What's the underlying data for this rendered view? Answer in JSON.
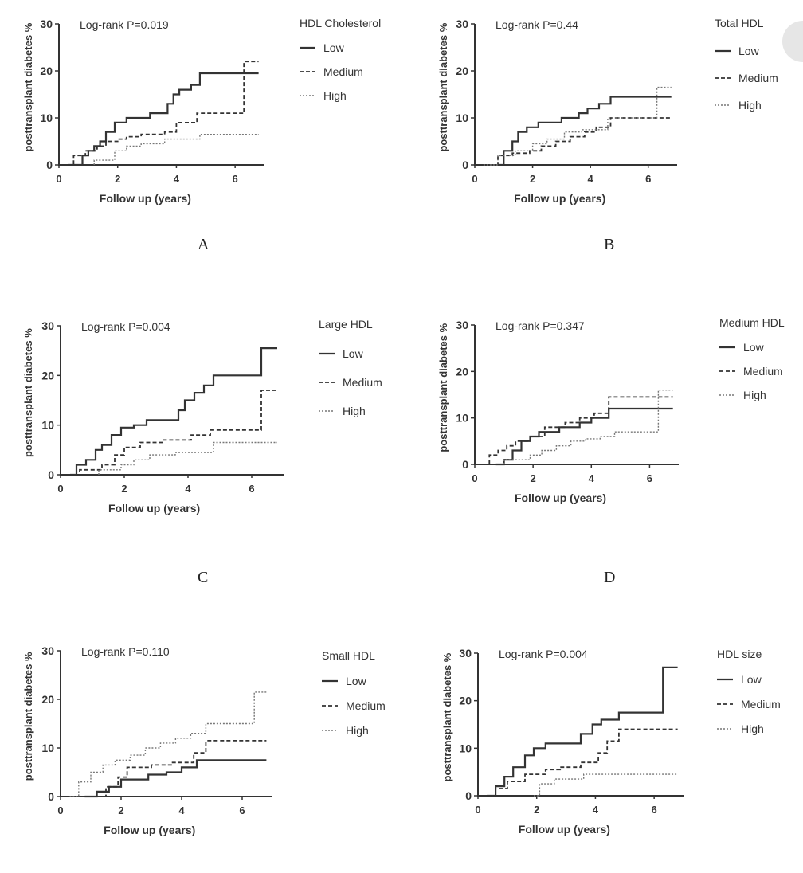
{
  "chart_data": [
    {
      "type": "line",
      "panel_letter": "A",
      "annotation": "Log-rank P=0.019",
      "legend_title": "HDL Cholesterol",
      "xlabel": "Follow up (years)",
      "ylabel": "posttransplant diabetes %",
      "xlim": [
        0,
        7
      ],
      "ylim": [
        0,
        30
      ],
      "x_ticks": [
        "0",
        "2",
        "4",
        "6"
      ],
      "y_ticks": [
        "0",
        "10",
        "20",
        "30"
      ],
      "legend_position": "right",
      "series": [
        {
          "name": "Low",
          "style": "solid",
          "x": [
            0.3,
            0.8,
            1.0,
            1.2,
            1.4,
            1.6,
            1.9,
            2.3,
            3.1,
            3.7,
            3.9,
            4.1,
            4.5,
            4.8,
            6.8
          ],
          "y": [
            0,
            2,
            3,
            4,
            5,
            7,
            9,
            10,
            11,
            13,
            15,
            16,
            17,
            19.5,
            19.5
          ]
        },
        {
          "name": "Medium",
          "style": "dashed",
          "x": [
            0.3,
            0.5,
            0.9,
            1.3,
            1.6,
            2.0,
            2.3,
            2.8,
            3.6,
            4.0,
            4.7,
            6.3,
            6.8
          ],
          "y": [
            0,
            2,
            3,
            4,
            5,
            5.5,
            6,
            6.5,
            7,
            9,
            11,
            22,
            22
          ]
        },
        {
          "name": "High",
          "style": "dotted",
          "x": [
            1.2,
            1.9,
            2.3,
            2.8,
            3.6,
            4.8,
            6.8
          ],
          "y": [
            1,
            3,
            4,
            4.5,
            5.5,
            6.5,
            6.5
          ]
        }
      ]
    },
    {
      "type": "line",
      "panel_letter": "B",
      "annotation": "Log-rank P=0.44",
      "legend_title": "Total HDL",
      "xlabel": "Follow up (years)",
      "ylabel": "posttransplant diabetes %",
      "xlim": [
        0,
        7
      ],
      "ylim": [
        0,
        30
      ],
      "x_ticks": [
        "0",
        "2",
        "4",
        "6"
      ],
      "y_ticks": [
        "0",
        "10",
        "20",
        "30"
      ],
      "legend_position": "right",
      "series": [
        {
          "name": "Low",
          "style": "solid",
          "x": [
            0.8,
            1.0,
            1.3,
            1.5,
            1.8,
            2.2,
            3.0,
            3.6,
            3.9,
            4.3,
            4.7,
            6.8
          ],
          "y": [
            0,
            3,
            5,
            7,
            8,
            9,
            10,
            11,
            12,
            13,
            14.5,
            14.5
          ]
        },
        {
          "name": "Medium",
          "style": "dashed",
          "x": [
            0.3,
            0.8,
            1.3,
            1.9,
            2.3,
            2.8,
            3.3,
            3.8,
            4.2,
            4.7,
            6.8
          ],
          "y": [
            0,
            2,
            2.5,
            3,
            4,
            5,
            6,
            7,
            8,
            10,
            10
          ]
        },
        {
          "name": "High",
          "style": "dotted",
          "x": [
            0.3,
            0.8,
            1.4,
            2.0,
            2.5,
            3.1,
            3.7,
            4.6,
            6.3,
            6.8
          ],
          "y": [
            0,
            2,
            3,
            4.5,
            5.5,
            7,
            7.5,
            10,
            16.5,
            16.5
          ]
        }
      ]
    },
    {
      "type": "line",
      "panel_letter": "C",
      "annotation": "Log-rank P=0.004",
      "legend_title": "Large HDL",
      "xlabel": "Follow up (years)",
      "ylabel": "posttransplant diabetes %",
      "xlim": [
        0,
        7
      ],
      "ylim": [
        0,
        30
      ],
      "x_ticks": [
        "0",
        "2",
        "4",
        "6"
      ],
      "y_ticks": [
        "0",
        "10",
        "20",
        "30"
      ],
      "legend_position": "right",
      "series": [
        {
          "name": "Low",
          "style": "solid",
          "x": [
            0.3,
            0.5,
            0.8,
            1.1,
            1.3,
            1.6,
            1.9,
            2.3,
            2.7,
            3.7,
            3.9,
            4.2,
            4.5,
            4.8,
            6.3,
            6.8
          ],
          "y": [
            0,
            2,
            3,
            5,
            6,
            8,
            9.5,
            10,
            11,
            13,
            15,
            16.5,
            18,
            20,
            25.5,
            25.5
          ]
        },
        {
          "name": "Medium",
          "style": "dashed",
          "x": [
            0.3,
            0.6,
            1.3,
            1.7,
            2.0,
            2.5,
            3.2,
            4.1,
            4.7,
            6.3,
            6.8
          ],
          "y": [
            0,
            1,
            2,
            4,
            5.5,
            6.5,
            7,
            8,
            9,
            17,
            17
          ]
        },
        {
          "name": "High",
          "style": "dotted",
          "x": [
            1.2,
            1.9,
            2.3,
            2.8,
            3.6,
            4.8,
            6.8
          ],
          "y": [
            1,
            2,
            3,
            4,
            4.5,
            6.5,
            6.5
          ]
        }
      ]
    },
    {
      "type": "line",
      "panel_letter": "D",
      "annotation": "Log-rank P=0.347",
      "legend_title": "Medium HDL",
      "xlabel": "Follow up (years)",
      "ylabel": "posttransplant diabetes %",
      "xlim": [
        0,
        7
      ],
      "ylim": [
        0,
        30
      ],
      "x_ticks": [
        "0",
        "2",
        "4",
        "6"
      ],
      "y_ticks": [
        "0",
        "10",
        "20",
        "30"
      ],
      "legend_position": "right",
      "series": [
        {
          "name": "Low",
          "style": "solid",
          "x": [
            0.7,
            1.0,
            1.3,
            1.6,
            1.9,
            2.2,
            2.9,
            3.6,
            4.0,
            4.6,
            6.8
          ],
          "y": [
            0,
            1,
            3,
            5,
            6,
            7,
            8,
            9,
            10,
            12,
            12
          ]
        },
        {
          "name": "Medium",
          "style": "dashed",
          "x": [
            0.3,
            0.5,
            0.8,
            1.1,
            1.4,
            1.9,
            2.4,
            3.1,
            3.6,
            4.1,
            4.6,
            6.8
          ],
          "y": [
            0,
            2,
            3,
            4,
            5,
            6,
            8,
            9,
            10,
            11,
            14.5,
            14.5
          ]
        },
        {
          "name": "High",
          "style": "dotted",
          "x": [
            1.0,
            1.9,
            2.3,
            2.8,
            3.3,
            3.8,
            4.3,
            4.8,
            6.3,
            6.8
          ],
          "y": [
            1,
            2,
            3,
            4,
            5,
            5.5,
            6,
            7,
            16,
            16
          ]
        }
      ]
    },
    {
      "type": "line",
      "panel_letter": "",
      "annotation": "Log-rank P=0.110",
      "legend_title": "Small HDL",
      "xlabel": "Follow up (years)",
      "ylabel": "posttransplant diabetes %",
      "xlim": [
        0,
        7
      ],
      "ylim": [
        0,
        30
      ],
      "x_ticks": [
        "0",
        "2",
        "4",
        "6"
      ],
      "y_ticks": [
        "0",
        "10",
        "20",
        "30"
      ],
      "legend_position": "right",
      "series": [
        {
          "name": "Low",
          "style": "solid",
          "x": [
            0.8,
            1.2,
            1.6,
            2.0,
            2.9,
            3.5,
            4.0,
            4.5,
            6.8
          ],
          "y": [
            0,
            1,
            2,
            3.5,
            4.5,
            5,
            6,
            7.5,
            7.5
          ]
        },
        {
          "name": "Medium",
          "style": "dashed",
          "x": [
            0.8,
            1.5,
            1.9,
            2.2,
            3.0,
            3.7,
            4.4,
            4.8,
            6.8
          ],
          "y": [
            0,
            2,
            4,
            6,
            6.5,
            7,
            9,
            11.5,
            11.5
          ]
        },
        {
          "name": "High",
          "style": "dotted",
          "x": [
            0.3,
            0.6,
            1.0,
            1.4,
            1.8,
            2.3,
            2.8,
            3.3,
            3.8,
            4.3,
            4.8,
            6.2,
            6.4,
            6.8
          ],
          "y": [
            0,
            3,
            5,
            6.5,
            7.5,
            8.5,
            10,
            11,
            12,
            13,
            15,
            15,
            21.5,
            21.5
          ]
        }
      ]
    },
    {
      "type": "line",
      "panel_letter": "",
      "annotation": "Log-rank P=0.004",
      "legend_title": "HDL size",
      "xlabel": "Follow up (years)",
      "ylabel": "posttransplant diabetes %",
      "xlim": [
        0,
        7
      ],
      "ylim": [
        0,
        30
      ],
      "x_ticks": [
        "0",
        "2",
        "4",
        "6"
      ],
      "y_ticks": [
        "0",
        "10",
        "20",
        "30"
      ],
      "legend_position": "right",
      "series": [
        {
          "name": "Low",
          "style": "solid",
          "x": [
            0.3,
            0.6,
            0.9,
            1.2,
            1.6,
            1.9,
            2.3,
            3.5,
            3.9,
            4.2,
            4.8,
            6.3,
            6.8
          ],
          "y": [
            0,
            2,
            4,
            6,
            8.5,
            10,
            11,
            13,
            15,
            16,
            17.5,
            27,
            27
          ]
        },
        {
          "name": "Medium",
          "style": "dashed",
          "x": [
            0.3,
            0.6,
            1.0,
            1.6,
            2.3,
            2.8,
            3.5,
            4.1,
            4.4,
            4.8,
            6.8
          ],
          "y": [
            0,
            1.5,
            3,
            4.5,
            5.5,
            6,
            7,
            9,
            11.5,
            14,
            14
          ]
        },
        {
          "name": "High",
          "style": "dotted",
          "x": [
            1.9,
            2.1,
            2.6,
            3.6,
            6.8
          ],
          "y": [
            0,
            2.5,
            3.5,
            4.5,
            4.5
          ]
        }
      ]
    }
  ]
}
